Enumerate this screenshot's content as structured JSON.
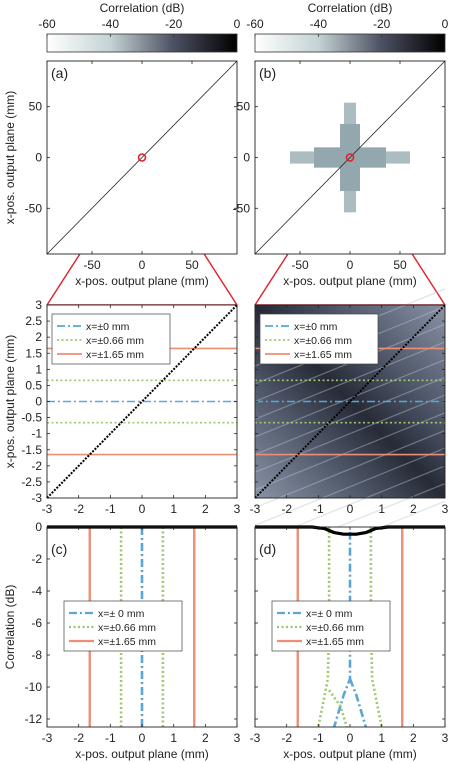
{
  "colorbar": {
    "title": "Correlation (dB)",
    "ticks": [
      -60,
      -40,
      -20,
      0
    ],
    "range": [
      -60,
      0
    ],
    "colors": [
      "#ffffff",
      "#c4d3d4",
      "#4c5062",
      "#000000"
    ]
  },
  "chart_data": [
    {
      "id": "a",
      "panel_label": "(a)",
      "type": "heatmap",
      "xlabel": "x-pos. output plane (mm)",
      "ylabel": "x-pos. output plane (mm)",
      "xlim": [
        -95,
        95
      ],
      "ylim": [
        -95,
        95
      ],
      "xticks": [
        -50,
        0,
        50
      ],
      "yticks": [
        50,
        0,
        -50
      ],
      "diagonal": true,
      "marker": {
        "x": 0,
        "y": 0
      },
      "cross_halfwidth": 0
    },
    {
      "id": "b",
      "panel_label": "(b)",
      "type": "heatmap",
      "xlabel": "x-pos. output plane (mm)",
      "ylabel": "",
      "xlim": [
        -95,
        95
      ],
      "ylim": [
        -95,
        95
      ],
      "xticks": [
        -50,
        0,
        50
      ],
      "yticks": [
        50,
        0,
        -50
      ],
      "diagonal": true,
      "marker": {
        "x": 0,
        "y": 0
      },
      "cross_halfwidth": 60
    },
    {
      "id": "a-zoom",
      "type": "heatmap",
      "xlim": [
        -3,
        3
      ],
      "ylim": [
        -3,
        3
      ],
      "xticks": [
        -3,
        -2,
        -1,
        0,
        1,
        2,
        3
      ],
      "yticks": [
        3,
        2.5,
        2,
        1.5,
        1,
        0.5,
        0,
        -0.5,
        -1,
        -1.5,
        -2,
        -2.5,
        -3
      ],
      "ylabel": "x-pos. output plane (mm)",
      "background": "white",
      "lines": [
        {
          "name": "x=±0 mm",
          "values": [
            0
          ],
          "color": "#5aa7d6",
          "style": "dashdot"
        },
        {
          "name": "x=±0.66 mm",
          "values": [
            0.66,
            -0.66
          ],
          "color": "#9ec86e",
          "style": "dotted"
        },
        {
          "name": "x=±1.65 mm",
          "values": [
            1.65,
            -1.65
          ],
          "color": "#ec8e76",
          "style": "solid"
        }
      ]
    },
    {
      "id": "b-zoom",
      "type": "heatmap",
      "xlim": [
        -3,
        3
      ],
      "ylim": [
        -3,
        3
      ],
      "xticks": [
        -3,
        -2,
        -1,
        0,
        1,
        2,
        3
      ],
      "yticks": [
        3,
        2.5,
        2,
        1.5,
        1,
        0.5,
        0,
        -0.5,
        -1,
        -1.5,
        -2,
        -2.5,
        -3
      ],
      "background": "speckle",
      "lines": [
        {
          "name": "x=±0 mm",
          "values": [
            0
          ],
          "color": "#5aa7d6",
          "style": "dashdot"
        },
        {
          "name": "x=±0.66 mm",
          "values": [
            0.66,
            -0.66
          ],
          "color": "#9ec86e",
          "style": "dotted"
        },
        {
          "name": "x=±1.65 mm",
          "values": [
            1.65,
            -1.65
          ],
          "color": "#ec8e76",
          "style": "solid"
        }
      ]
    },
    {
      "id": "c",
      "panel_label": "(c)",
      "type": "line",
      "xlabel": "x-pos. output plane (mm)",
      "ylabel": "Correlation (dB)",
      "xlim": [
        -3,
        3
      ],
      "ylim": [
        -12.5,
        0
      ],
      "xticks": [
        -3,
        -2,
        -1,
        0,
        1,
        2,
        3
      ],
      "yticks": [
        0,
        -2,
        -4,
        -6,
        -8,
        -10,
        -12
      ],
      "series": [
        {
          "name": "x=± 0 mm",
          "color": "#5aa7d6",
          "style": "dashdot",
          "x": [
            0,
            0
          ],
          "y": [
            0,
            -12.5
          ]
        },
        {
          "name": "x=±0.66 mm",
          "color": "#9ec86e",
          "style": "dotted",
          "x": [
            -0.66,
            -0.66
          ],
          "y": [
            0,
            -12.5
          ]
        },
        {
          "name": "",
          "color": "#9ec86e",
          "style": "dotted",
          "x": [
            0.66,
            0.66
          ],
          "y": [
            0,
            -12.5
          ]
        },
        {
          "name": "x=±1.65 mm",
          "color": "#ec8e76",
          "style": "solid",
          "x": [
            -1.65,
            -1.65
          ],
          "y": [
            0,
            -12.5
          ]
        },
        {
          "name": "",
          "color": "#ec8e76",
          "style": "solid",
          "x": [
            1.65,
            1.65
          ],
          "y": [
            0,
            -12.5
          ]
        }
      ],
      "envelope": {
        "x": [
          -3,
          3
        ],
        "y": [
          0,
          0
        ]
      }
    },
    {
      "id": "d",
      "panel_label": "(d)",
      "type": "line",
      "xlabel": "x-pos. output plane (mm)",
      "ylabel": "",
      "xlim": [
        -3,
        3
      ],
      "ylim": [
        -12.5,
        0
      ],
      "xticks": [
        -3,
        -2,
        -1,
        0,
        1,
        2,
        3
      ],
      "yticks": [
        0,
        -2,
        -4,
        -6,
        -8,
        -10,
        -12
      ],
      "series": [
        {
          "name": "x=± 0 mm",
          "color": "#5aa7d6",
          "style": "dashdot",
          "x": [
            0,
            0,
            0,
            -0.2,
            -0.5
          ],
          "y": [
            -0.3,
            -6,
            -9.5,
            -10.5,
            -12.5
          ]
        },
        {
          "name": "",
          "color": "#5aa7d6",
          "style": "dashdot",
          "x": [
            0,
            0.2,
            0.5
          ],
          "y": [
            -9.5,
            -10.5,
            -12.5
          ]
        },
        {
          "name": "x=±0.66 mm",
          "color": "#9ec86e",
          "style": "dotted",
          "x": [
            -0.66,
            -0.66,
            -0.7,
            -1.0
          ],
          "y": [
            0,
            -6,
            -9.5,
            -12.5
          ]
        },
        {
          "name": "",
          "color": "#9ec86e",
          "style": "dotted",
          "x": [
            0.66,
            0.66,
            0.7,
            1.0
          ],
          "y": [
            0,
            -6,
            -9.5,
            -12.5
          ]
        },
        {
          "name": "",
          "color": "#9ec86e",
          "style": "dotted",
          "x": [
            -0.66,
            -0.3,
            -0.1
          ],
          "y": [
            -10.2,
            -11.2,
            -12.5
          ]
        },
        {
          "name": "x=±1.65 mm",
          "color": "#ec8e76",
          "style": "solid",
          "x": [
            -1.65,
            -1.65
          ],
          "y": [
            0,
            -12.5
          ]
        },
        {
          "name": "",
          "color": "#ec8e76",
          "style": "solid",
          "x": [
            1.65,
            1.65
          ],
          "y": [
            0,
            -12.5
          ]
        }
      ],
      "envelope": {
        "x": [
          -3,
          -1.2,
          -0.8,
          -0.5,
          -0.2,
          0,
          0.2,
          0.5,
          0.8,
          1.2,
          3
        ],
        "y": [
          0,
          0,
          -0.1,
          -0.35,
          -0.45,
          -0.45,
          -0.45,
          -0.35,
          -0.1,
          0,
          0
        ]
      }
    }
  ]
}
